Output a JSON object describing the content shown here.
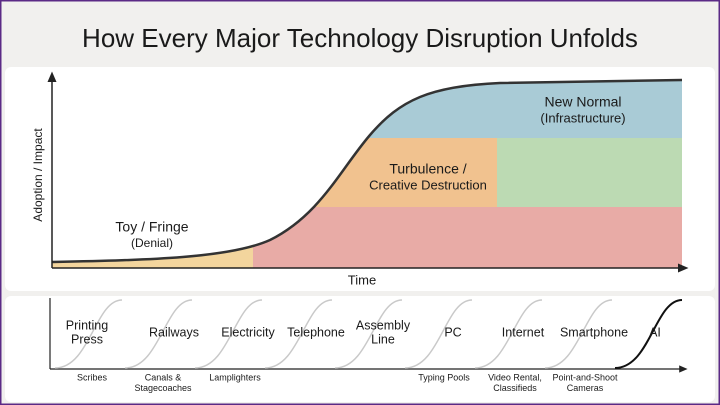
{
  "header": {
    "title": "How Every Major Technology Disruption Unfolds"
  },
  "main_diagram": {
    "y_axis_label": "Adoption / Impact",
    "x_axis_label": "Time",
    "phases": [
      {
        "name": "Toy / Fringe",
        "note": "(Denial)"
      },
      {
        "name": "Turbulence /",
        "note": "Creative Destruction"
      },
      {
        "name": "New Normal",
        "note": "(Infrastructure)"
      }
    ]
  },
  "timeline": {
    "items": [
      {
        "name": [
          "Printing",
          "Press"
        ],
        "replaced": [
          "Scribes"
        ]
      },
      {
        "name": [
          "Railways"
        ],
        "replaced": [
          "Canals &",
          "Stagecoaches"
        ]
      },
      {
        "name": [
          "Electricity"
        ],
        "replaced": [
          "Lamplighters"
        ]
      },
      {
        "name": [
          "Telephone"
        ]
      },
      {
        "name": [
          "Assembly",
          "Line"
        ]
      },
      {
        "name": [
          "PC"
        ],
        "replaced": [
          "Typing Pools"
        ]
      },
      {
        "name": [
          "Internet"
        ],
        "replaced": [
          "Video Rental,",
          "Classifieds"
        ]
      },
      {
        "name": [
          "Smartphone"
        ],
        "replaced": [
          "Point-and-Shoot",
          "Cameras"
        ]
      },
      {
        "name": [
          "AI"
        ]
      }
    ]
  }
}
